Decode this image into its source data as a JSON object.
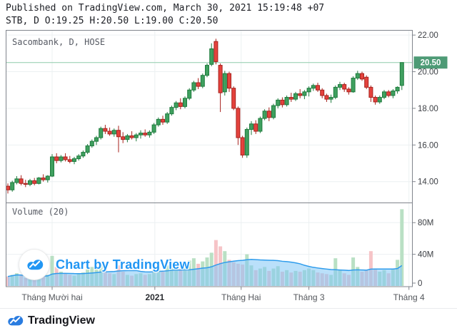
{
  "header": {
    "published_line": "Published on TradingView.com, March 30, 2021 15:19:48 +07",
    "ohlc_line": "STB, D O:19.25 H:20.50 L:19.00 C:20.50"
  },
  "chart": {
    "symbol_label": "Sacombank, D, HOSE",
    "volume_label": "Volume (20)",
    "last_price_badge": "20.50"
  },
  "watermark": {
    "text": "Chart by TradingView"
  },
  "footer": {
    "brand": "TradingView"
  },
  "colors": {
    "up_fill": "#3fa05f",
    "up_stroke": "#1e7b3d",
    "down_fill": "#e4423d",
    "down_stroke": "#a7221d",
    "vol_up": "#b9e0c4",
    "vol_down": "#f6c4c7",
    "ma_fill": "rgba(130,198,245,0.55)",
    "ma_line": "#2f9cec",
    "last_price_line": "#8fcbab",
    "badge_bg": "#4e9b76",
    "border": "#80848c",
    "grid": "#ecf0f2",
    "axis_text": "#3c3f44",
    "month_text": "#54575c",
    "brand_blue": "#2196f3",
    "footer_blue": "#2a7ce0"
  },
  "chart_data": {
    "type": "candlestick+volume",
    "title": "Sacombank, D, HOSE",
    "symbol": "STB",
    "timeframe": "D",
    "exchange": "HOSE",
    "last_values": {
      "o": 19.25,
      "h": 20.5,
      "l": 19.0,
      "c": 20.5
    },
    "last_price": 20.5,
    "volume_ma_period": 20,
    "grid": true,
    "legend_position": "none",
    "price_axis": {
      "min": 12.84,
      "max": 22.26,
      "ticks": [
        {
          "v": 22,
          "label": "22.00"
        },
        {
          "v": 20,
          "label": "20.00"
        },
        {
          "v": 18,
          "label": "18.00"
        },
        {
          "v": 16,
          "label": "16.00"
        },
        {
          "v": 14,
          "label": "14.00"
        }
      ]
    },
    "volume_axis": {
      "min": 0,
      "max": 105,
      "ticks": [
        {
          "v": 80,
          "label": "80M"
        },
        {
          "v": 40,
          "label": "40M"
        },
        {
          "v": 0,
          "label": "0"
        }
      ]
    },
    "x_ticks": [
      {
        "pos": 10,
        "label": "Tháng Mười hai",
        "bold": false
      },
      {
        "pos": 33.2,
        "label": "2021",
        "bold": true
      },
      {
        "pos": 52.7,
        "label": "Tháng Hai",
        "bold": false
      },
      {
        "pos": 68,
        "label": "Tháng 3",
        "bold": false
      },
      {
        "pos": 90.6,
        "label": "Tháng 4",
        "bold": false
      }
    ],
    "candles_format": [
      "open",
      "high",
      "low",
      "close",
      "volume_millions"
    ],
    "candles": [
      [
        13.75,
        13.9,
        13.35,
        13.55,
        12
      ],
      [
        13.55,
        14.05,
        13.45,
        13.95,
        14
      ],
      [
        13.95,
        14.3,
        13.85,
        14.15,
        16
      ],
      [
        14.15,
        14.35,
        13.8,
        13.9,
        13
      ],
      [
        13.9,
        14.1,
        13.7,
        13.85,
        10
      ],
      [
        13.85,
        14.15,
        13.75,
        14.05,
        12
      ],
      [
        14.05,
        14.2,
        13.8,
        13.9,
        11
      ],
      [
        13.9,
        14.25,
        13.85,
        14.2,
        13
      ],
      [
        14.2,
        14.4,
        14.0,
        14.1,
        12
      ],
      [
        14.1,
        14.35,
        13.95,
        14.3,
        14
      ],
      [
        14.3,
        15.5,
        14.25,
        15.35,
        38
      ],
      [
        15.35,
        15.55,
        15.0,
        15.15,
        24
      ],
      [
        15.15,
        15.45,
        15.05,
        15.35,
        18
      ],
      [
        15.35,
        15.55,
        15.1,
        15.2,
        16
      ],
      [
        15.2,
        15.4,
        15.0,
        15.1,
        14
      ],
      [
        15.1,
        15.35,
        14.95,
        15.25,
        13
      ],
      [
        15.25,
        15.5,
        15.15,
        15.4,
        15
      ],
      [
        15.4,
        15.7,
        15.3,
        15.6,
        17
      ],
      [
        15.6,
        16.05,
        15.5,
        15.95,
        21
      ],
      [
        15.95,
        16.3,
        15.85,
        16.2,
        24
      ],
      [
        16.2,
        16.5,
        16.0,
        16.4,
        22
      ],
      [
        16.4,
        17.0,
        16.3,
        16.9,
        29
      ],
      [
        16.9,
        17.1,
        16.6,
        16.75,
        21
      ],
      [
        16.75,
        16.95,
        16.5,
        16.6,
        16
      ],
      [
        16.6,
        16.9,
        16.45,
        16.8,
        15
      ],
      [
        16.8,
        17.05,
        15.6,
        16.45,
        26
      ],
      [
        16.45,
        16.7,
        16.1,
        16.3,
        18
      ],
      [
        16.3,
        16.6,
        16.15,
        16.5,
        14
      ],
      [
        16.5,
        16.75,
        16.3,
        16.4,
        13
      ],
      [
        16.4,
        16.65,
        16.2,
        16.55,
        15
      ],
      [
        16.55,
        16.8,
        16.35,
        16.65,
        16
      ],
      [
        16.65,
        16.85,
        16.45,
        16.55,
        14
      ],
      [
        16.55,
        16.8,
        16.4,
        16.7,
        15
      ],
      [
        16.7,
        17.2,
        16.6,
        17.1,
        20
      ],
      [
        17.1,
        17.5,
        17.0,
        17.4,
        24
      ],
      [
        17.4,
        17.6,
        17.1,
        17.25,
        18
      ],
      [
        17.25,
        17.8,
        17.15,
        17.7,
        26
      ],
      [
        17.7,
        18.15,
        17.6,
        18.05,
        30
      ],
      [
        18.05,
        18.4,
        17.9,
        18.3,
        28
      ],
      [
        18.3,
        18.55,
        17.95,
        18.1,
        22
      ],
      [
        18.1,
        18.65,
        18.0,
        18.55,
        25
      ],
      [
        18.55,
        19.1,
        18.45,
        19.0,
        32
      ],
      [
        19.0,
        19.5,
        18.9,
        19.4,
        35
      ],
      [
        19.4,
        19.65,
        19.05,
        19.2,
        28
      ],
      [
        19.2,
        19.9,
        19.1,
        19.8,
        31
      ],
      [
        19.8,
        20.45,
        19.7,
        20.35,
        36
      ],
      [
        20.4,
        21.55,
        20.3,
        21.25,
        42
      ],
      [
        21.65,
        21.8,
        20.4,
        20.55,
        58
      ],
      [
        20.35,
        20.45,
        17.8,
        18.85,
        50
      ],
      [
        18.9,
        20.05,
        18.7,
        19.9,
        44
      ],
      [
        19.9,
        20.0,
        18.9,
        19.1,
        33
      ],
      [
        19.1,
        19.2,
        17.9,
        18.0,
        30
      ],
      [
        18.0,
        18.1,
        16.0,
        16.4,
        28
      ],
      [
        16.4,
        16.5,
        15.3,
        15.45,
        27
      ],
      [
        15.45,
        16.95,
        15.3,
        16.85,
        40
      ],
      [
        16.85,
        17.3,
        16.55,
        17.15,
        26
      ],
      [
        17.15,
        17.35,
        16.6,
        16.75,
        20
      ],
      [
        16.75,
        17.55,
        16.65,
        17.45,
        22
      ],
      [
        17.45,
        17.95,
        17.35,
        17.85,
        24
      ],
      [
        17.85,
        18.05,
        17.3,
        17.5,
        19
      ],
      [
        17.5,
        18.25,
        17.4,
        18.15,
        22
      ],
      [
        18.15,
        18.55,
        18.0,
        18.45,
        25
      ],
      [
        18.45,
        18.6,
        18.05,
        18.2,
        18
      ],
      [
        18.2,
        18.7,
        18.1,
        18.6,
        20
      ],
      [
        18.6,
        18.85,
        18.35,
        18.5,
        17
      ],
      [
        18.5,
        18.9,
        18.4,
        18.8,
        19
      ],
      [
        18.8,
        19.05,
        18.55,
        18.7,
        18
      ],
      [
        18.7,
        19.0,
        18.5,
        18.9,
        20
      ],
      [
        18.9,
        19.2,
        18.65,
        19.1,
        22
      ],
      [
        19.1,
        19.35,
        18.95,
        19.25,
        20
      ],
      [
        19.25,
        19.4,
        18.9,
        19.0,
        17
      ],
      [
        19.0,
        19.1,
        18.55,
        18.7,
        16
      ],
      [
        18.7,
        18.8,
        18.35,
        18.5,
        15
      ],
      [
        18.5,
        18.75,
        18.3,
        18.6,
        14
      ],
      [
        18.6,
        19.25,
        18.5,
        19.15,
        35
      ],
      [
        19.15,
        19.45,
        19.0,
        19.3,
        20
      ],
      [
        19.3,
        19.4,
        18.9,
        19.05,
        16
      ],
      [
        19.05,
        19.15,
        18.75,
        18.9,
        14
      ],
      [
        18.9,
        19.75,
        18.85,
        19.65,
        36
      ],
      [
        19.65,
        20.05,
        19.55,
        19.9,
        24
      ],
      [
        19.9,
        20.0,
        19.5,
        19.6,
        18
      ],
      [
        19.7,
        19.8,
        19.05,
        19.15,
        20
      ],
      [
        19.15,
        19.25,
        18.35,
        18.6,
        44
      ],
      [
        18.6,
        18.7,
        18.2,
        18.35,
        22
      ],
      [
        18.35,
        18.7,
        18.25,
        18.6,
        18
      ],
      [
        18.6,
        19.0,
        18.5,
        18.9,
        20
      ],
      [
        18.9,
        19.0,
        18.6,
        18.7,
        16
      ],
      [
        18.7,
        19.05,
        18.55,
        18.95,
        22
      ],
      [
        18.95,
        19.2,
        18.8,
        19.15,
        33
      ],
      [
        19.25,
        20.5,
        19.0,
        20.5,
        97
      ]
    ]
  }
}
